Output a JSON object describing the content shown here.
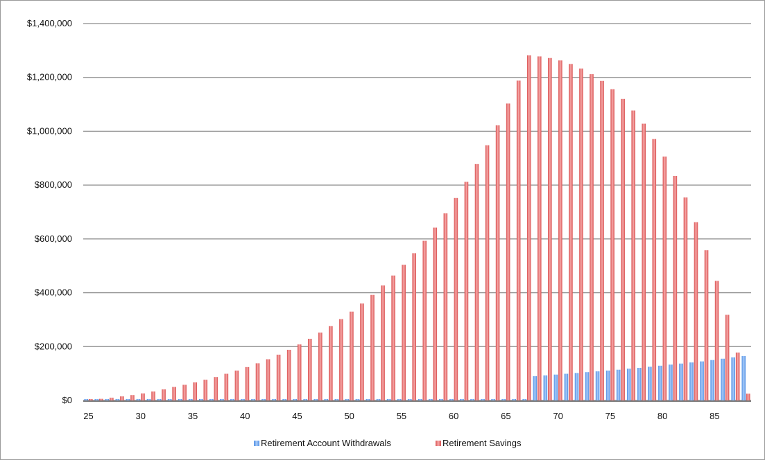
{
  "chart_data": {
    "type": "bar",
    "title": "",
    "xlabel": "",
    "ylabel": "",
    "ylim": [
      0,
      1400000
    ],
    "y_ticks": [
      {
        "value": 0,
        "label": "$0"
      },
      {
        "value": 200000,
        "label": "$200,000"
      },
      {
        "value": 400000,
        "label": "$400,000"
      },
      {
        "value": 600000,
        "label": "$600,000"
      },
      {
        "value": 800000,
        "label": "$800,000"
      },
      {
        "value": 1000000,
        "label": "$1,000,000"
      },
      {
        "value": 1200000,
        "label": "$1,200,000"
      },
      {
        "value": 1400000,
        "label": "$1,400,000"
      }
    ],
    "x_tick_labels": [
      "25",
      "30",
      "35",
      "40",
      "45",
      "50",
      "55",
      "60",
      "65",
      "70",
      "75",
      "80",
      "85"
    ],
    "categories": [
      25,
      26,
      27,
      28,
      29,
      30,
      31,
      32,
      33,
      34,
      35,
      36,
      37,
      38,
      39,
      40,
      41,
      42,
      43,
      44,
      45,
      46,
      47,
      48,
      49,
      50,
      51,
      52,
      53,
      54,
      55,
      56,
      57,
      58,
      59,
      60,
      61,
      62,
      63,
      64,
      65,
      66,
      67,
      68,
      69,
      70,
      71,
      72,
      73,
      74,
      75,
      76,
      77,
      78,
      79,
      80,
      81,
      82,
      83,
      84,
      85,
      86,
      87,
      88
    ],
    "grid": true,
    "legend_position": "bottom",
    "series": [
      {
        "name": "Retirement Account Withdrawals",
        "color": "#6fa8f0",
        "values": [
          0,
          0,
          0,
          0,
          0,
          0,
          0,
          0,
          0,
          0,
          0,
          0,
          0,
          0,
          0,
          0,
          0,
          0,
          0,
          0,
          0,
          0,
          0,
          0,
          0,
          0,
          0,
          0,
          0,
          0,
          0,
          0,
          0,
          0,
          0,
          0,
          0,
          0,
          0,
          0,
          0,
          0,
          0,
          90000,
          93000,
          96000,
          99000,
          102000,
          105000,
          108000,
          111000,
          114000,
          118000,
          121000,
          125000,
          129000,
          133000,
          137000,
          141000,
          145000,
          150000,
          155000,
          160000,
          165000
        ]
      },
      {
        "name": "Retirement Savings",
        "color": "#ef7f7f",
        "values": [
          3000,
          6000,
          10000,
          15000,
          20000,
          26000,
          33000,
          41000,
          50000,
          58000,
          67000,
          77000,
          87000,
          99000,
          111000,
          124000,
          138000,
          153000,
          170000,
          188000,
          208000,
          229000,
          252000,
          276000,
          302000,
          330000,
          360000,
          392000,
          427000,
          464000,
          504000,
          547000,
          593000,
          642000,
          695000,
          752000,
          812000,
          878000,
          948000,
          1022000,
          1103000,
          1188000,
          1282000,
          1278000,
          1272000,
          1263000,
          1250000,
          1233000,
          1212000,
          1187000,
          1156000,
          1120000,
          1077000,
          1028000,
          971000,
          906000,
          834000,
          754000,
          662000,
          558000,
          444000,
          318000,
          178000,
          25000
        ]
      }
    ]
  }
}
